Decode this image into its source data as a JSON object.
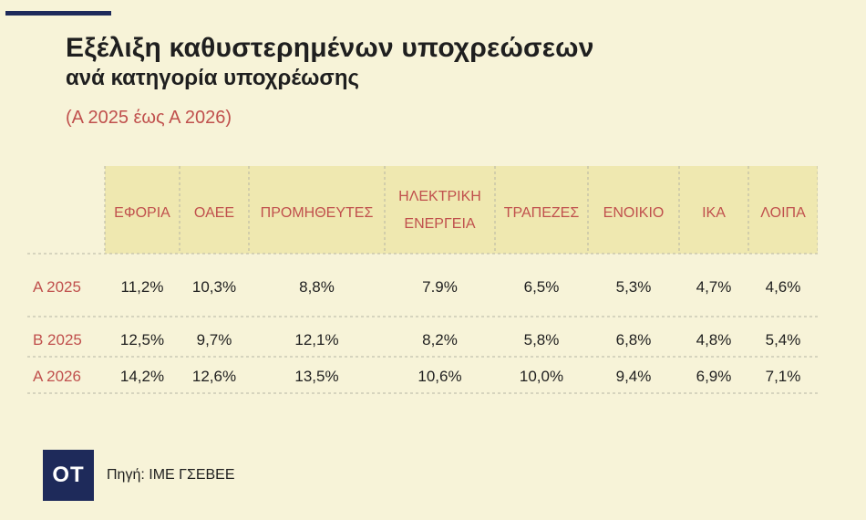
{
  "title": "Εξέλιξη καθυστερημένων υποχρεώσεων",
  "subtitle": "ανά κατηγορία υποχρέωσης",
  "period": "(Α 2025 έως Α 2026)",
  "logo_text": "ΟΤ",
  "source": "Πηγή: ΙΜΕ ΓΣΕΒΕΕ",
  "colors": {
    "background": "#f7f3d8",
    "header_bg": "#efe8b0",
    "accent": "#c0504d",
    "navy": "#1e2a5a"
  },
  "chart_data": {
    "type": "table",
    "columns": [
      "ΕΦΟΡΙΑ",
      "ΟΑΕΕ",
      "ΠΡΟΜΗΘΕΥΤΕΣ",
      "ΗΛΕΚΤΡΙΚΗ ΕΝΕΡΓΕΙΑ",
      "ΤΡΑΠΕΖΕΣ",
      "ΕΝΟΙΚΙΟ",
      "ΙΚΑ",
      "ΛΟΙΠΑ"
    ],
    "rows": [
      {
        "label": "Α 2025",
        "values": [
          "11,2%",
          "10,3%",
          "8,8%",
          "7.9%",
          "6,5%",
          "5,3%",
          "4,7%",
          "4,6%"
        ]
      },
      {
        "label": "Β 2025",
        "values": [
          "12,5%",
          "9,7%",
          "12,1%",
          "8,2%",
          "5,8%",
          "6,8%",
          "4,8%",
          "5,4%"
        ]
      },
      {
        "label": "Α 2026",
        "values": [
          "14,2%",
          "12,6%",
          "13,5%",
          "10,6%",
          "10,0%",
          "9,4%",
          "6,9%",
          "7,1%"
        ]
      }
    ]
  }
}
